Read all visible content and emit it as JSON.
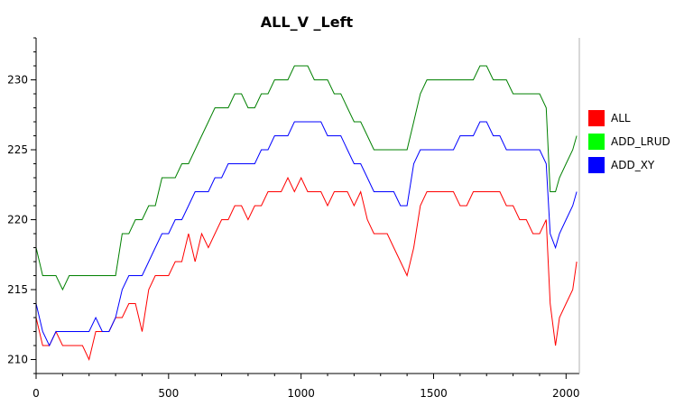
{
  "chart_data": {
    "type": "line",
    "title": "ALL_V _Left",
    "xlabel": "",
    "ylabel": "",
    "xlim": [
      0,
      2050
    ],
    "ylim": [
      209,
      233
    ],
    "xticks": [
      0,
      500,
      1000,
      1500,
      2000
    ],
    "yticks": [
      210,
      215,
      220,
      225,
      230
    ],
    "grid": false,
    "legend_position": "right",
    "series": [
      {
        "name": "ALL",
        "color": "#ff0000",
        "x": [
          0,
          25,
          50,
          75,
          100,
          125,
          150,
          175,
          200,
          225,
          250,
          275,
          300,
          325,
          350,
          375,
          400,
          425,
          450,
          475,
          500,
          525,
          550,
          575,
          600,
          625,
          650,
          675,
          700,
          725,
          750,
          775,
          800,
          825,
          850,
          875,
          900,
          925,
          950,
          975,
          1000,
          1025,
          1050,
          1075,
          1100,
          1125,
          1150,
          1175,
          1200,
          1225,
          1250,
          1275,
          1300,
          1325,
          1350,
          1375,
          1400,
          1425,
          1450,
          1475,
          1500,
          1525,
          1550,
          1575,
          1600,
          1625,
          1650,
          1675,
          1700,
          1725,
          1750,
          1775,
          1800,
          1825,
          1850,
          1875,
          1900,
          1925,
          1940,
          1960,
          1975,
          2000,
          2025,
          2040
        ],
        "values": [
          213,
          211,
          211,
          212,
          211,
          211,
          211,
          211,
          210,
          212,
          212,
          212,
          213,
          213,
          214,
          214,
          212,
          215,
          216,
          216,
          216,
          217,
          217,
          219,
          217,
          219,
          218,
          219,
          220,
          220,
          221,
          221,
          220,
          221,
          221,
          222,
          222,
          222,
          223,
          222,
          223,
          222,
          222,
          222,
          221,
          222,
          222,
          222,
          221,
          222,
          220,
          219,
          219,
          219,
          218,
          217,
          216,
          218,
          221,
          222,
          222,
          222,
          222,
          222,
          221,
          221,
          222,
          222,
          222,
          222,
          222,
          221,
          221,
          220,
          220,
          219,
          219,
          220,
          214,
          211,
          213,
          214,
          215,
          217
        ]
      },
      {
        "name": "ADD_LRUD",
        "color": "#008000",
        "x": [
          0,
          25,
          50,
          75,
          100,
          125,
          150,
          175,
          200,
          225,
          250,
          275,
          300,
          325,
          350,
          375,
          400,
          425,
          450,
          475,
          500,
          525,
          550,
          575,
          600,
          625,
          650,
          675,
          700,
          725,
          750,
          775,
          800,
          825,
          850,
          875,
          900,
          925,
          950,
          975,
          1000,
          1025,
          1050,
          1075,
          1100,
          1125,
          1150,
          1175,
          1200,
          1225,
          1250,
          1275,
          1300,
          1325,
          1350,
          1375,
          1400,
          1425,
          1450,
          1475,
          1500,
          1525,
          1550,
          1575,
          1600,
          1625,
          1650,
          1675,
          1700,
          1725,
          1750,
          1775,
          1800,
          1825,
          1850,
          1875,
          1900,
          1925,
          1940,
          1960,
          1975,
          2000,
          2025,
          2040
        ],
        "values": [
          218,
          216,
          216,
          216,
          215,
          216,
          216,
          216,
          216,
          216,
          216,
          216,
          216,
          219,
          219,
          220,
          220,
          221,
          221,
          223,
          223,
          223,
          224,
          224,
          225,
          226,
          227,
          228,
          228,
          228,
          229,
          229,
          228,
          228,
          229,
          229,
          230,
          230,
          230,
          231,
          231,
          231,
          230,
          230,
          230,
          229,
          229,
          228,
          227,
          227,
          226,
          225,
          225,
          225,
          225,
          225,
          225,
          227,
          229,
          230,
          230,
          230,
          230,
          230,
          230,
          230,
          230,
          231,
          231,
          230,
          230,
          230,
          229,
          229,
          229,
          229,
          229,
          228,
          222,
          222,
          223,
          224,
          225,
          226
        ]
      },
      {
        "name": "ADD_XY",
        "color": "#0000ff",
        "x": [
          0,
          25,
          50,
          75,
          100,
          125,
          150,
          175,
          200,
          225,
          250,
          275,
          300,
          325,
          350,
          375,
          400,
          425,
          450,
          475,
          500,
          525,
          550,
          575,
          600,
          625,
          650,
          675,
          700,
          725,
          750,
          775,
          800,
          825,
          850,
          875,
          900,
          925,
          950,
          975,
          1000,
          1025,
          1050,
          1075,
          1100,
          1125,
          1150,
          1175,
          1200,
          1225,
          1250,
          1275,
          1300,
          1325,
          1350,
          1375,
          1400,
          1425,
          1450,
          1475,
          1500,
          1525,
          1550,
          1575,
          1600,
          1625,
          1650,
          1675,
          1700,
          1725,
          1750,
          1775,
          1800,
          1825,
          1850,
          1875,
          1900,
          1925,
          1940,
          1960,
          1975,
          2000,
          2025,
          2040
        ],
        "values": [
          214,
          212,
          211,
          212,
          212,
          212,
          212,
          212,
          212,
          213,
          212,
          212,
          213,
          215,
          216,
          216,
          216,
          217,
          218,
          219,
          219,
          220,
          220,
          221,
          222,
          222,
          222,
          223,
          223,
          224,
          224,
          224,
          224,
          224,
          225,
          225,
          226,
          226,
          226,
          227,
          227,
          227,
          227,
          227,
          226,
          226,
          226,
          225,
          224,
          224,
          223,
          222,
          222,
          222,
          222,
          221,
          221,
          224,
          225,
          225,
          225,
          225,
          225,
          225,
          226,
          226,
          226,
          227,
          227,
          226,
          226,
          225,
          225,
          225,
          225,
          225,
          225,
          224,
          219,
          218,
          219,
          220,
          221,
          222
        ]
      }
    ]
  }
}
